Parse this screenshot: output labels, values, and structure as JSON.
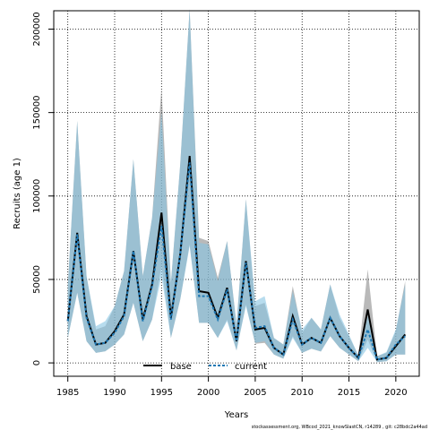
{
  "chart_data": {
    "type": "line",
    "title": "",
    "xlabel": "Years",
    "ylabel": "Recruits (age 1)",
    "xlim": [
      1983.5,
      2022.5
    ],
    "ylim": [
      -8000,
      211000
    ],
    "x_ticks": [
      1985,
      1990,
      1995,
      2000,
      2005,
      2010,
      2015,
      2020
    ],
    "y_ticks": [
      0,
      50000,
      100000,
      150000,
      200000
    ],
    "grid": true,
    "legend": {
      "placement": "bottom-center",
      "entries": [
        "base",
        "current"
      ]
    },
    "footer": "stockassessment.org,  WBcod_2021_knowSlastCN,  r14289 ,  git: c28bdc2a44ad",
    "colors": {
      "base_line": "#000000",
      "current_line": "#1e78b4",
      "base_band": "#808080",
      "current_band": "#87c5e3",
      "overlap_band": "#a5c3d1"
    },
    "years": [
      1985,
      1986,
      1987,
      1988,
      1989,
      1990,
      1991,
      1992,
      1993,
      1994,
      1995,
      1996,
      1997,
      1998,
      1999,
      2000,
      2001,
      2002,
      2003,
      2004,
      2005,
      2006,
      2007,
      2008,
      2009,
      2010,
      2011,
      2012,
      2013,
      2014,
      2015,
      2016,
      2017,
      2018,
      2019,
      2020,
      2021
    ],
    "series": [
      {
        "name": "base",
        "values": [
          25000,
          78000,
          28000,
          11000,
          12000,
          19000,
          29000,
          67000,
          26000,
          47000,
          90000,
          27000,
          65000,
          124000,
          43000,
          42000,
          27000,
          45000,
          13000,
          61000,
          20000,
          21000,
          9000,
          5000,
          28000,
          11000,
          15000,
          12000,
          27000,
          16000,
          9000,
          3000,
          32000,
          2000,
          3000,
          10000,
          17000
        ],
        "lower": [
          15000,
          42000,
          13000,
          6000,
          7000,
          11000,
          17000,
          36000,
          13000,
          26000,
          58000,
          15000,
          38000,
          71000,
          24000,
          24000,
          15000,
          26000,
          7500,
          35000,
          11500,
          12000,
          5000,
          2500,
          16000,
          6000,
          8500,
          6800,
          16000,
          9000,
          5000,
          1000,
          14000,
          500,
          1000,
          5000,
          5000
        ],
        "upper": [
          46000,
          145000,
          52000,
          20000,
          22000,
          34000,
          55000,
          122000,
          52000,
          87000,
          165000,
          48000,
          119000,
          212000,
          75000,
          73000,
          51000,
          73000,
          23000,
          98000,
          34000,
          36000,
          15000,
          11000,
          46000,
          18000,
          27000,
          20000,
          47000,
          27000,
          16000,
          4500,
          56000,
          4000,
          6000,
          19000,
          49000
        ]
      },
      {
        "name": "current",
        "values": [
          25000,
          77000,
          27000,
          11000,
          12000,
          18000,
          28000,
          67000,
          25000,
          46000,
          82000,
          26000,
          65000,
          120000,
          40000,
          40000,
          26000,
          44000,
          13000,
          60000,
          21000,
          22000,
          9000,
          5000,
          26000,
          11000,
          15000,
          12000,
          27000,
          16000,
          9000,
          3000,
          20000,
          2000,
          3000,
          11000,
          16000
        ],
        "lower": [
          15000,
          42000,
          13000,
          6000,
          7000,
          11000,
          17000,
          36000,
          13000,
          26000,
          52000,
          15000,
          38000,
          70000,
          24000,
          24000,
          15000,
          25000,
          7500,
          34000,
          12000,
          13000,
          5000,
          2500,
          15000,
          6000,
          8500,
          6800,
          16000,
          9000,
          5000,
          1000,
          9000,
          500,
          1000,
          5000,
          5000
        ],
        "upper": [
          46000,
          145000,
          52000,
          22000,
          25000,
          34000,
          55000,
          122000,
          52000,
          87000,
          150000,
          48000,
          119000,
          212000,
          72000,
          71000,
          49000,
          73000,
          23000,
          98000,
          37000,
          40000,
          15000,
          11000,
          43000,
          20000,
          27000,
          20000,
          47000,
          29000,
          17000,
          4500,
          28000,
          4000,
          6500,
          20000,
          47000
        ]
      }
    ]
  }
}
